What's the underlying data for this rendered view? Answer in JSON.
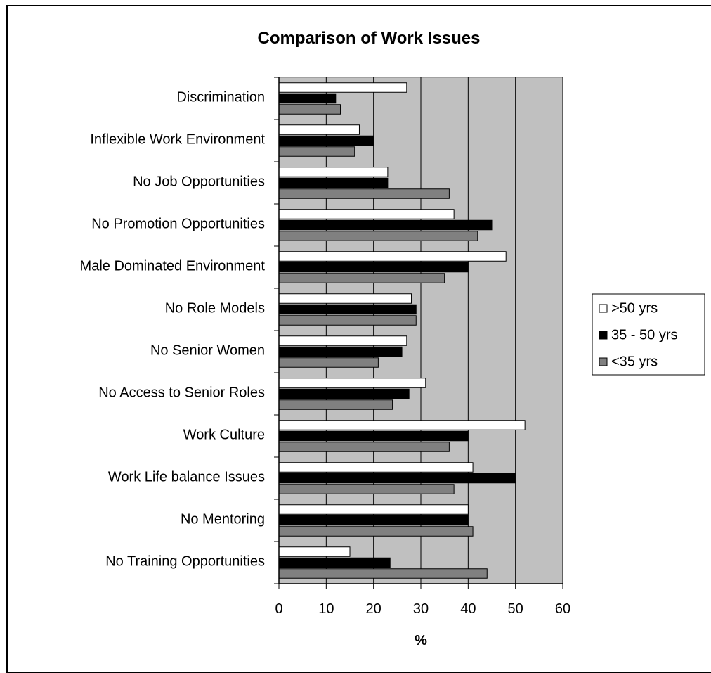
{
  "chart_data": {
    "type": "bar",
    "orientation": "horizontal",
    "title": "Comparison of Work Issues",
    "xlabel": "%",
    "ylabel": "",
    "xlim": [
      0,
      60
    ],
    "xticks": [
      0,
      10,
      20,
      30,
      40,
      50,
      60
    ],
    "grid": true,
    "legend_position": "right",
    "plot_background": "#c0c0c0",
    "categories": [
      "Discrimination",
      "Inflexible Work Environment",
      "No Job Opportunities",
      "No Promotion Opportunities",
      "Male Dominated Environment",
      "No Role Models",
      "No Senior Women",
      "No Access to Senior Roles",
      "Work Culture",
      "Work Life balance Issues",
      "No Mentoring",
      "No Training Opportunities"
    ],
    "series": [
      {
        "name": ">50 yrs",
        "color": "#ffffff",
        "values": [
          27,
          17,
          23,
          37,
          48,
          28,
          27,
          31,
          52,
          41,
          40,
          15
        ]
      },
      {
        "name": "35 - 50 yrs",
        "color": "#000000",
        "values": [
          12,
          20,
          23,
          45,
          40,
          29,
          26,
          27.5,
          40,
          50,
          40,
          23.5
        ]
      },
      {
        "name": "<35 yrs",
        "color": "#808080",
        "values": [
          13,
          16,
          36,
          42,
          35,
          29,
          21,
          24,
          36,
          37,
          41,
          44
        ]
      }
    ]
  }
}
